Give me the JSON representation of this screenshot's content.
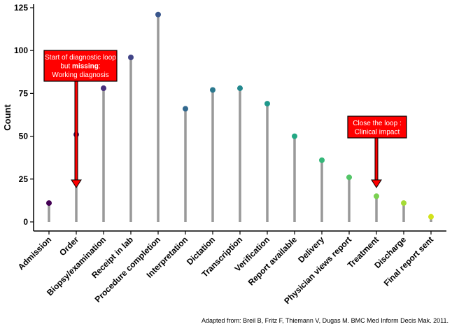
{
  "chart_data": {
    "type": "lollipop",
    "title": "",
    "xlabel": "",
    "ylabel": "Count",
    "ylim": [
      0,
      125
    ],
    "yticks": [
      0,
      25,
      50,
      75,
      100,
      125
    ],
    "grid": false,
    "categories": [
      "Admission",
      "Order",
      "Biopsy/examination",
      "Receipt in lab",
      "Procedure completion",
      "Interpretation",
      "Dictation",
      "Transcription",
      "Verification",
      "Report available",
      "Delivery",
      "Physician views report",
      "Treatment",
      "Discharge",
      "Final report sent"
    ],
    "values": [
      11,
      51,
      78,
      96,
      121,
      66,
      77,
      78,
      69,
      50,
      36,
      26,
      15,
      11,
      3
    ],
    "point_colors": [
      "#440154",
      "#481a6c",
      "#472f7d",
      "#414487",
      "#39568c",
      "#31688e",
      "#2a788e",
      "#23888e",
      "#1f988b",
      "#22a884",
      "#35b779",
      "#54c568",
      "#7ad151",
      "#a5db36",
      "#d2e21b"
    ],
    "stem_color": "#999999",
    "annotations": [
      {
        "lines": [
          "Start of diagnostic loop",
          "but |missing|:",
          "Working diagnosis"
        ],
        "bold_word": "missing",
        "points_to": "Order",
        "color": "#ff0000"
      },
      {
        "lines": [
          "Close the loop :",
          "Clinical impact"
        ],
        "points_to": "Treatment",
        "color": "#ff0000"
      }
    ],
    "caption": "Adapted from: Breil B, Fritz F, Thiemann V, Dugas M. BMC Med Inform Decis Mak. 2011."
  }
}
